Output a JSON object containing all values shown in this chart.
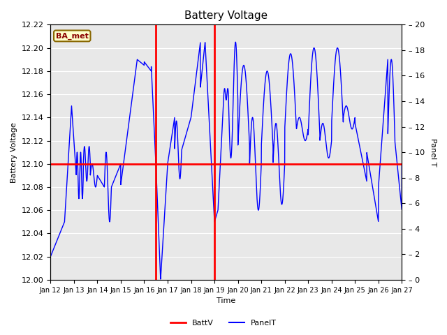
{
  "title": "Battery Voltage",
  "xlabel": "Time",
  "ylabel_left": "Battery Voltage",
  "ylabel_right": "Panel T",
  "xlim": [
    0,
    15
  ],
  "ylim_left": [
    12.0,
    12.22
  ],
  "ylim_right": [
    0,
    20
  ],
  "yticks_left": [
    12.0,
    12.02,
    12.04,
    12.06,
    12.08,
    12.1,
    12.12,
    12.14,
    12.16,
    12.18,
    12.2,
    12.22
  ],
  "yticks_right": [
    0,
    2,
    4,
    6,
    8,
    10,
    12,
    14,
    16,
    18,
    20
  ],
  "xtick_labels": [
    "Jan 12",
    "Jan 13",
    "Jan 14",
    "Jan 15",
    "Jan 16",
    "Jan 17",
    "Jan 18",
    "Jan 19",
    "Jan 20",
    "Jan 21",
    "Jan 22",
    "Jan 23",
    "Jan 24",
    "Jan 25",
    "Jan 26",
    "Jan 27"
  ],
  "bg_color": "#e8e8e8",
  "grid_color": "white",
  "batt_v_horizontal": 12.1,
  "batt_v_vertical1_x": 4.5,
  "batt_v_vertical2_x": 7.0,
  "legend_label1": "BattV",
  "legend_label2": "PanelT",
  "badge_text": "BA_met",
  "badge_bg": "#ffffcc",
  "badge_border": "#886600",
  "line_color_batt": "red",
  "line_color_panel": "blue",
  "fig_width": 6.4,
  "fig_height": 4.8,
  "dpi": 100
}
